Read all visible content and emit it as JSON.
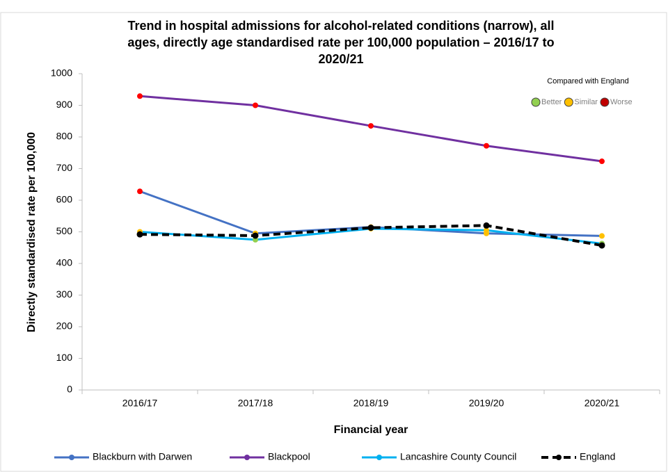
{
  "chart_data": {
    "type": "line",
    "title": [
      "Trend in hospital admissions for alcohol-related conditions (narrow), all",
      "ages, directly age standardised rate per 100,000 population – 2016/17 to",
      "2020/21"
    ],
    "x_label": "Financial year",
    "y_label": "Directly standardised rate per 100,000",
    "categories": [
      "2016/17",
      "2017/18",
      "2018/19",
      "2019/20",
      "2020/21"
    ],
    "series": [
      {
        "name": "Blackburn with Darwen",
        "color": "#4472c4",
        "values": [
          628,
          495,
          515,
          495,
          487
        ],
        "marker_colors": [
          "#ff0000",
          "#ffc000",
          "#ffc000",
          "#ffc000",
          "#ffc000"
        ]
      },
      {
        "name": "Blackpool",
        "color": "#7030a0",
        "values": [
          929,
          900,
          835,
          772,
          723
        ],
        "marker_colors": [
          "#ff0000",
          "#ff0000",
          "#ff0000",
          "#ff0000",
          "#ff0000"
        ]
      },
      {
        "name": "Lancashire County Council",
        "color": "#00b0f0",
        "values": [
          500,
          475,
          510,
          505,
          463
        ],
        "marker_colors": [
          "#ffc000",
          "#92d050",
          "#ffc000",
          "#ffc000",
          "#92d050"
        ]
      },
      {
        "name": "England",
        "color": "#000000",
        "dashed": true,
        "values": [
          492,
          488,
          513,
          520,
          457
        ],
        "marker_colors": [
          "#000000",
          "#000000",
          "#000000",
          "#000000",
          "#000000"
        ]
      }
    ],
    "ylim": [
      0,
      1000
    ],
    "yticks": [
      0,
      100,
      200,
      300,
      400,
      500,
      600,
      700,
      800,
      900,
      1000
    ],
    "comparison": {
      "title": "Compared with England",
      "items": [
        {
          "name": "Better",
          "color": "#92d050"
        },
        {
          "name": "Similar",
          "color": "#ffc000"
        },
        {
          "name": "Worse",
          "color": "#c00000"
        }
      ]
    }
  }
}
